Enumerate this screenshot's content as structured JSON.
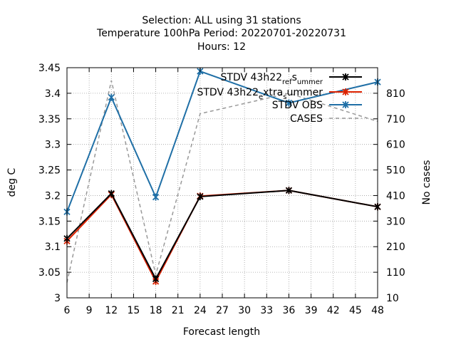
{
  "chart_data": {
    "type": "line",
    "title_lines": [
      "Selection: ALL using    31 stations",
      "Temperature 100hPa   Period: 20220701-20220731",
      "Hours:  12"
    ],
    "xlabel": "Forecast length",
    "ylabel": "deg C",
    "y2label": "No cases",
    "xlim": [
      6,
      48
    ],
    "ylim": [
      3.0,
      3.45
    ],
    "y2lim": [
      10,
      910
    ],
    "xticks": [
      "6",
      "9",
      "12",
      "15",
      "18",
      "21",
      "24",
      "27",
      "30",
      "33",
      "36",
      "39",
      "42",
      "45",
      "48"
    ],
    "yticks": [
      "3",
      "3.05",
      "3.1",
      "3.15",
      "3.2",
      "3.25",
      "3.3",
      "3.35",
      "3.4",
      "3.45"
    ],
    "y2ticks": [
      "10",
      "110",
      "210",
      "310",
      "410",
      "510",
      "610",
      "710",
      "810"
    ],
    "grid": true,
    "legend_position": "top-right",
    "series": [
      {
        "name": "STDV 43h22_ref_summer",
        "legend_parts": [
          "STDV 43h22",
          "ref",
          "s",
          "ummer"
        ],
        "axis": "y",
        "color": "#000000",
        "marker": "x",
        "x": [
          6,
          12,
          18,
          24,
          36,
          48
        ],
        "y": [
          3.116,
          3.204,
          3.037,
          3.198,
          3.21,
          3.178
        ]
      },
      {
        "name": "STDV 43h22_extra_summer",
        "legend_parts": [
          "STDV 43h22",
          "e",
          "xtra",
          "s",
          "ummer"
        ],
        "axis": "y",
        "color": "#dd2200",
        "marker": "x",
        "x": [
          6,
          12,
          18,
          24,
          36,
          48
        ],
        "y": [
          3.111,
          3.202,
          3.032,
          3.199,
          3.21,
          3.178
        ]
      },
      {
        "name": "STDV OBS",
        "axis": "y",
        "color": "#1f6fa6",
        "marker": "x",
        "x": [
          6,
          12,
          18,
          24,
          36,
          48
        ],
        "y": [
          3.168,
          3.392,
          3.197,
          3.443,
          3.381,
          3.422
        ]
      },
      {
        "name": "CASES",
        "axis": "y2",
        "color": "#999999",
        "dashed": true,
        "x": [
          6,
          12,
          18,
          24,
          36,
          48
        ],
        "y": [
          70,
          860,
          100,
          730,
          810,
          700
        ]
      }
    ]
  }
}
